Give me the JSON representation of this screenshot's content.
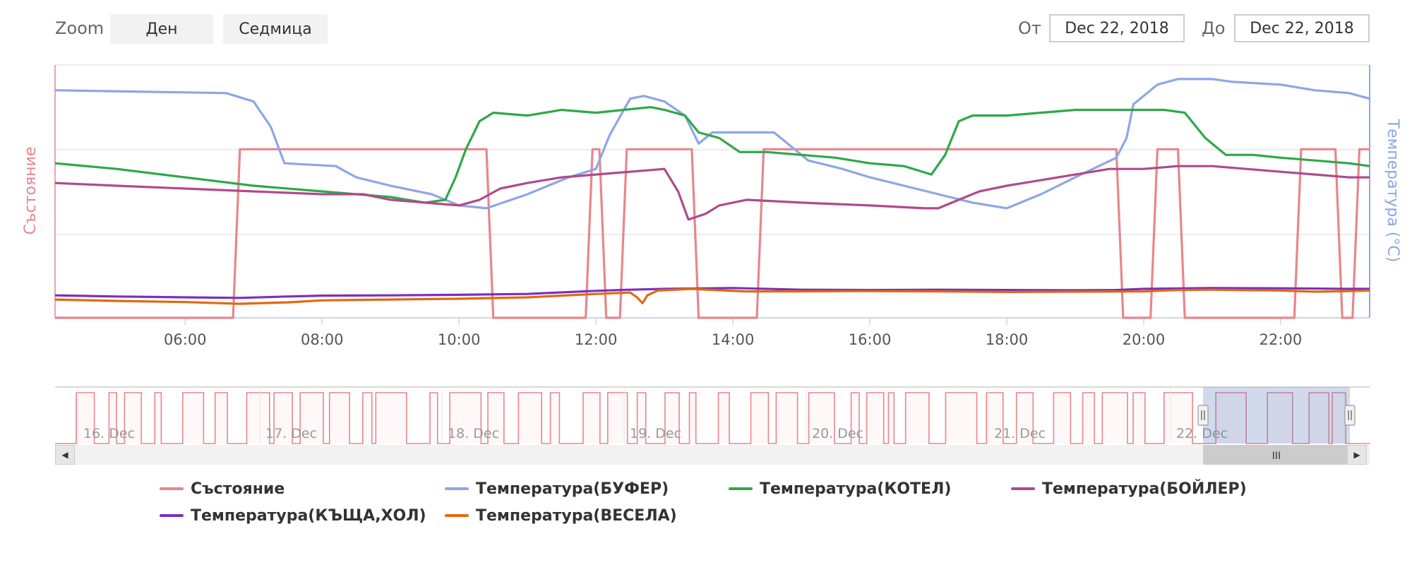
{
  "toolbar": {
    "zoom_label": "Zoom",
    "day_button": "Ден",
    "week_button": "Седмица",
    "from_label": "От",
    "from_value": "Dec 22, 2018",
    "to_label": "До",
    "to_value": "Dec 22, 2018"
  },
  "colors": {
    "state": "#e8868c",
    "buffer": "#8ea6e6",
    "kotel": "#2ea84a",
    "boiler": "#b04a8c",
    "house": "#7b2fc0",
    "vesela": "#e06a10"
  },
  "navigator": {
    "day_labels": [
      "16. Dec",
      "17. Dec",
      "18. Dec",
      "19. Dec",
      "20. Dec",
      "21. Dec",
      "22. Dec"
    ],
    "scrollbar_grip": "III"
  },
  "chart_data": {
    "type": "line",
    "title": "",
    "xlabel": "",
    "ylabel_left": "Състояние",
    "ylabel_right": "Температура (°C)",
    "x_unit": "hours",
    "xlim": [
      4.1,
      23.3
    ],
    "x_tick_labels": [
      "06:00",
      "08:00",
      "10:00",
      "12:00",
      "14:00",
      "16:00",
      "18:00",
      "20:00",
      "22:00"
    ],
    "x_ticks": [
      6,
      8,
      10,
      12,
      14,
      16,
      18,
      20,
      22
    ],
    "state_ylim": [
      0,
      1.5
    ],
    "temp_ylim": [
      0,
      90
    ],
    "grid": true,
    "legend_position": "bottom",
    "series": [
      {
        "name": "Състояние",
        "axis": "state",
        "points": [
          [
            4.1,
            0
          ],
          [
            6.7,
            0
          ],
          [
            6.8,
            1
          ],
          [
            10.4,
            1
          ],
          [
            10.5,
            0
          ],
          [
            11.85,
            0
          ],
          [
            11.95,
            1
          ],
          [
            12.05,
            1
          ],
          [
            12.15,
            0
          ],
          [
            12.35,
            0
          ],
          [
            12.45,
            1
          ],
          [
            13.4,
            1
          ],
          [
            13.5,
            0
          ],
          [
            14.35,
            0
          ],
          [
            14.45,
            1
          ],
          [
            19.6,
            1
          ],
          [
            19.7,
            0
          ],
          [
            20.1,
            0
          ],
          [
            20.2,
            1
          ],
          [
            20.5,
            1
          ],
          [
            20.6,
            0
          ],
          [
            22.2,
            0
          ],
          [
            22.3,
            1
          ],
          [
            22.8,
            1
          ],
          [
            22.9,
            0
          ],
          [
            23.05,
            0
          ],
          [
            23.15,
            1
          ],
          [
            23.3,
            1
          ]
        ]
      },
      {
        "name": "Температура(БУФЕР)",
        "axis": "temp",
        "points": [
          [
            4.1,
            81
          ],
          [
            6.6,
            80
          ],
          [
            7.0,
            77
          ],
          [
            7.25,
            68
          ],
          [
            7.45,
            55
          ],
          [
            8.2,
            54
          ],
          [
            8.5,
            50
          ],
          [
            9.0,
            47
          ],
          [
            9.6,
            44
          ],
          [
            10.0,
            40
          ],
          [
            10.4,
            39
          ],
          [
            11.0,
            44
          ],
          [
            11.6,
            50
          ],
          [
            12.0,
            53
          ],
          [
            12.2,
            65
          ],
          [
            12.5,
            78
          ],
          [
            12.7,
            79
          ],
          [
            13.0,
            77
          ],
          [
            13.3,
            72
          ],
          [
            13.5,
            62
          ],
          [
            13.7,
            66
          ],
          [
            14.6,
            66
          ],
          [
            14.8,
            62
          ],
          [
            15.1,
            56
          ],
          [
            15.6,
            53
          ],
          [
            16.0,
            50
          ],
          [
            16.5,
            47
          ],
          [
            17.0,
            44
          ],
          [
            17.5,
            41
          ],
          [
            18.0,
            39
          ],
          [
            18.5,
            44
          ],
          [
            19.0,
            50
          ],
          [
            19.6,
            57
          ],
          [
            19.75,
            64
          ],
          [
            19.85,
            76
          ],
          [
            20.2,
            83
          ],
          [
            20.5,
            85
          ],
          [
            21.0,
            85
          ],
          [
            21.3,
            84
          ],
          [
            22.0,
            83
          ],
          [
            22.5,
            81
          ],
          [
            23.0,
            80
          ],
          [
            23.3,
            78
          ]
        ]
      },
      {
        "name": "Температура(КОТЕЛ)",
        "axis": "temp",
        "points": [
          [
            4.1,
            55
          ],
          [
            5.0,
            53
          ],
          [
            6.0,
            50
          ],
          [
            7.0,
            47
          ],
          [
            8.0,
            45
          ],
          [
            9.0,
            43
          ],
          [
            9.5,
            41
          ],
          [
            9.8,
            42
          ],
          [
            9.95,
            50
          ],
          [
            10.1,
            60
          ],
          [
            10.3,
            70
          ],
          [
            10.5,
            73
          ],
          [
            11.0,
            72
          ],
          [
            11.5,
            74
          ],
          [
            12.0,
            73
          ],
          [
            12.4,
            74
          ],
          [
            12.8,
            75
          ],
          [
            13.0,
            74
          ],
          [
            13.3,
            72
          ],
          [
            13.5,
            66
          ],
          [
            13.8,
            64
          ],
          [
            14.1,
            59
          ],
          [
            14.5,
            59
          ],
          [
            15.0,
            58
          ],
          [
            15.5,
            57
          ],
          [
            16.0,
            55
          ],
          [
            16.5,
            54
          ],
          [
            16.9,
            51
          ],
          [
            17.1,
            58
          ],
          [
            17.3,
            70
          ],
          [
            17.5,
            72
          ],
          [
            18.0,
            72
          ],
          [
            18.5,
            73
          ],
          [
            19.0,
            74
          ],
          [
            19.5,
            74
          ],
          [
            20.0,
            74
          ],
          [
            20.3,
            74
          ],
          [
            20.6,
            73
          ],
          [
            20.9,
            64
          ],
          [
            21.2,
            58
          ],
          [
            21.6,
            58
          ],
          [
            22.0,
            57
          ],
          [
            22.5,
            56
          ],
          [
            23.0,
            55
          ],
          [
            23.3,
            54
          ]
        ]
      },
      {
        "name": "Температура(БОЙЛЕР)",
        "axis": "temp",
        "points": [
          [
            4.1,
            48
          ],
          [
            5.0,
            47
          ],
          [
            6.0,
            46
          ],
          [
            7.0,
            45
          ],
          [
            8.0,
            44
          ],
          [
            8.6,
            44
          ],
          [
            9.0,
            42
          ],
          [
            9.5,
            41
          ],
          [
            10.0,
            40
          ],
          [
            10.3,
            42
          ],
          [
            10.6,
            46
          ],
          [
            11.0,
            48
          ],
          [
            11.5,
            50
          ],
          [
            12.0,
            51
          ],
          [
            12.5,
            52
          ],
          [
            13.0,
            53
          ],
          [
            13.2,
            45
          ],
          [
            13.35,
            35
          ],
          [
            13.6,
            37
          ],
          [
            13.8,
            40
          ],
          [
            14.2,
            42
          ],
          [
            15.0,
            41
          ],
          [
            16.0,
            40
          ],
          [
            16.8,
            39
          ],
          [
            17.0,
            39
          ],
          [
            17.3,
            42
          ],
          [
            17.6,
            45
          ],
          [
            18.0,
            47
          ],
          [
            18.5,
            49
          ],
          [
            19.0,
            51
          ],
          [
            19.5,
            53
          ],
          [
            20.0,
            53
          ],
          [
            20.5,
            54
          ],
          [
            21.0,
            54
          ],
          [
            21.5,
            53
          ],
          [
            22.0,
            52
          ],
          [
            22.5,
            51
          ],
          [
            23.0,
            50
          ],
          [
            23.3,
            50
          ]
        ]
      },
      {
        "name": "Температура(КЪЩА,ХОЛ)",
        "axis": "temp",
        "points": [
          [
            4.1,
            8
          ],
          [
            5.0,
            7.6
          ],
          [
            6.0,
            7.3
          ],
          [
            6.8,
            7.1
          ],
          [
            7.5,
            7.6
          ],
          [
            8.0,
            7.9
          ],
          [
            9.0,
            8.0
          ],
          [
            10.0,
            8.2
          ],
          [
            11.0,
            8.5
          ],
          [
            12.0,
            9.6
          ],
          [
            12.5,
            10.0
          ],
          [
            13.0,
            10.3
          ],
          [
            14.0,
            10.6
          ],
          [
            15.0,
            10.0
          ],
          [
            16.0,
            9.9
          ],
          [
            17.0,
            10.0
          ],
          [
            18.0,
            9.9
          ],
          [
            19.0,
            9.8
          ],
          [
            19.6,
            9.9
          ],
          [
            20.0,
            10.3
          ],
          [
            21.0,
            10.6
          ],
          [
            22.0,
            10.5
          ],
          [
            23.0,
            10.3
          ],
          [
            23.3,
            10.3
          ]
        ]
      },
      {
        "name": "Температура(ВЕСЕЛА)",
        "axis": "temp",
        "points": [
          [
            4.1,
            6.5
          ],
          [
            5.0,
            6.0
          ],
          [
            6.0,
            5.6
          ],
          [
            6.8,
            5.0
          ],
          [
            7.5,
            5.5
          ],
          [
            8.0,
            6.2
          ],
          [
            9.0,
            6.5
          ],
          [
            10.0,
            6.8
          ],
          [
            11.0,
            7.3
          ],
          [
            12.0,
            8.5
          ],
          [
            12.5,
            9.0
          ],
          [
            12.6,
            7.3
          ],
          [
            12.68,
            5.2
          ],
          [
            12.75,
            8.0
          ],
          [
            12.9,
            9.7
          ],
          [
            13.4,
            10.3
          ],
          [
            13.8,
            9.8
          ],
          [
            14.2,
            9.4
          ],
          [
            15.0,
            9.4
          ],
          [
            16.0,
            9.5
          ],
          [
            17.0,
            9.4
          ],
          [
            18.0,
            9.2
          ],
          [
            19.0,
            9.3
          ],
          [
            20.0,
            9.4
          ],
          [
            20.5,
            9.9
          ],
          [
            21.0,
            10.0
          ],
          [
            22.0,
            9.7
          ],
          [
            22.5,
            9.3
          ],
          [
            23.0,
            9.5
          ],
          [
            23.3,
            9.7
          ]
        ]
      }
    ]
  }
}
